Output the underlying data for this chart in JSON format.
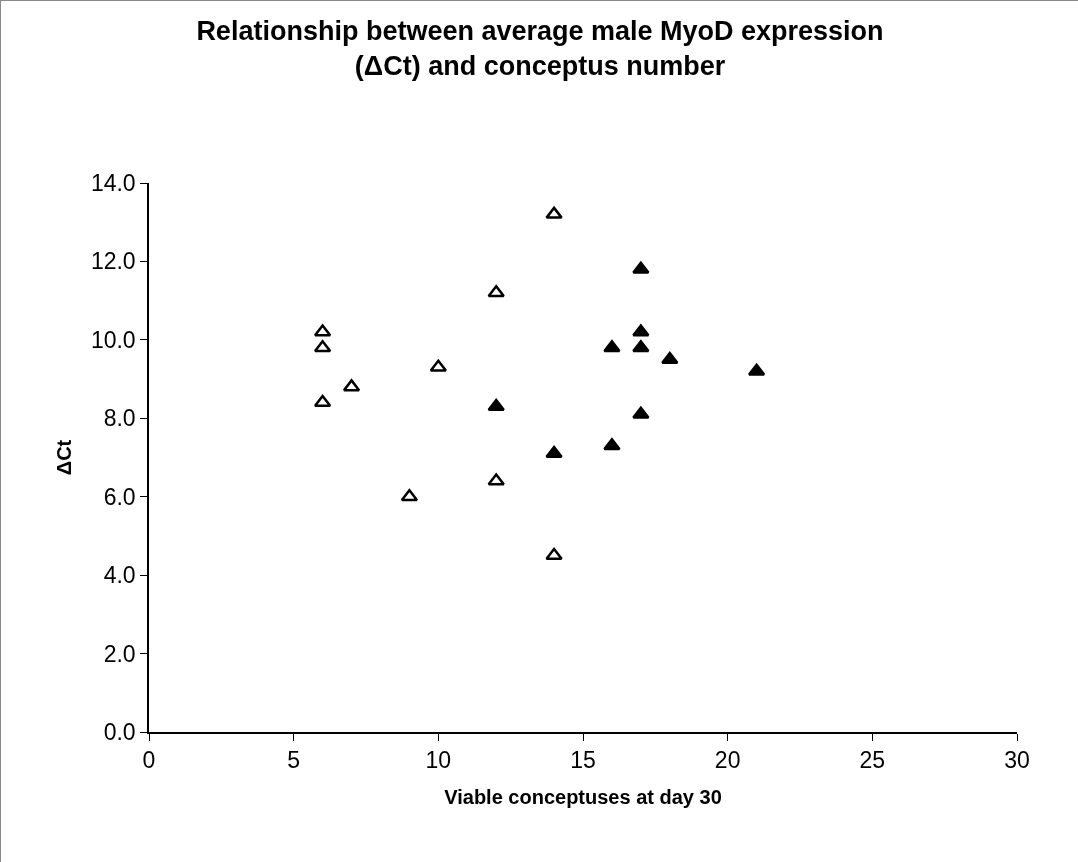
{
  "chart_data": {
    "type": "scatter",
    "title": "Relationship between average male MyoD expression\n(ΔCt) and conceptus number",
    "xlabel": "Viable conceptuses at day 30",
    "ylabel": "ΔCt",
    "series": [
      {
        "color": "#ffffff",
        "x": [
          6,
          6,
          6,
          7,
          9,
          10,
          12,
          12,
          14,
          14
        ],
        "values": [
          10.2,
          9.8,
          8.4,
          8.8,
          6.0,
          9.3,
          11.2,
          6.4,
          13.2,
          4.5
        ]
      },
      {
        "color": "#000000",
        "x": [
          12,
          14,
          16,
          16,
          17,
          17,
          17,
          17,
          18,
          21
        ],
        "values": [
          8.3,
          7.1,
          9.8,
          7.3,
          11.8,
          10.2,
          9.8,
          8.1,
          9.5,
          9.2
        ]
      }
    ],
    "xlim": [
      0,
      30
    ],
    "xticks": [
      0,
      5,
      10,
      15,
      20,
      25,
      30
    ],
    "ylim": [
      0,
      14
    ],
    "yticks": [
      {
        "value": 0,
        "label": "0.0"
      },
      {
        "value": 2,
        "label": "2.0"
      },
      {
        "value": 4,
        "label": "4.0"
      },
      {
        "value": 6,
        "label": "6.0"
      },
      {
        "value": 8,
        "label": "8.0"
      },
      {
        "value": 10,
        "label": "10.0"
      },
      {
        "value": 12,
        "label": "12.0"
      },
      {
        "value": 14,
        "label": "14.0"
      }
    ],
    "grid": false,
    "marker": "triangle"
  }
}
